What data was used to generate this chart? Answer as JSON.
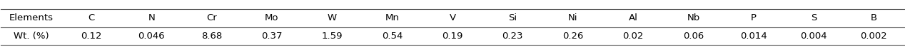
{
  "headers": [
    "Elements",
    "C",
    "N",
    "Cr",
    "Mo",
    "W",
    "Mn",
    "V",
    "Si",
    "Ni",
    "Al",
    "Nb",
    "P",
    "S",
    "B"
  ],
  "row_label": "Wt. (%)",
  "values": [
    "0.12",
    "0.046",
    "8.68",
    "0.37",
    "1.59",
    "0.54",
    "0.19",
    "0.23",
    "0.26",
    "0.02",
    "0.06",
    "0.014",
    "0.004",
    "0.002"
  ],
  "background_color": "#ffffff",
  "text_color": "#000000",
  "font_size": 9.5,
  "figwidth": 12.68,
  "figheight": 0.77,
  "dpi": 100,
  "line_color": "#555555",
  "line_width": 0.8
}
